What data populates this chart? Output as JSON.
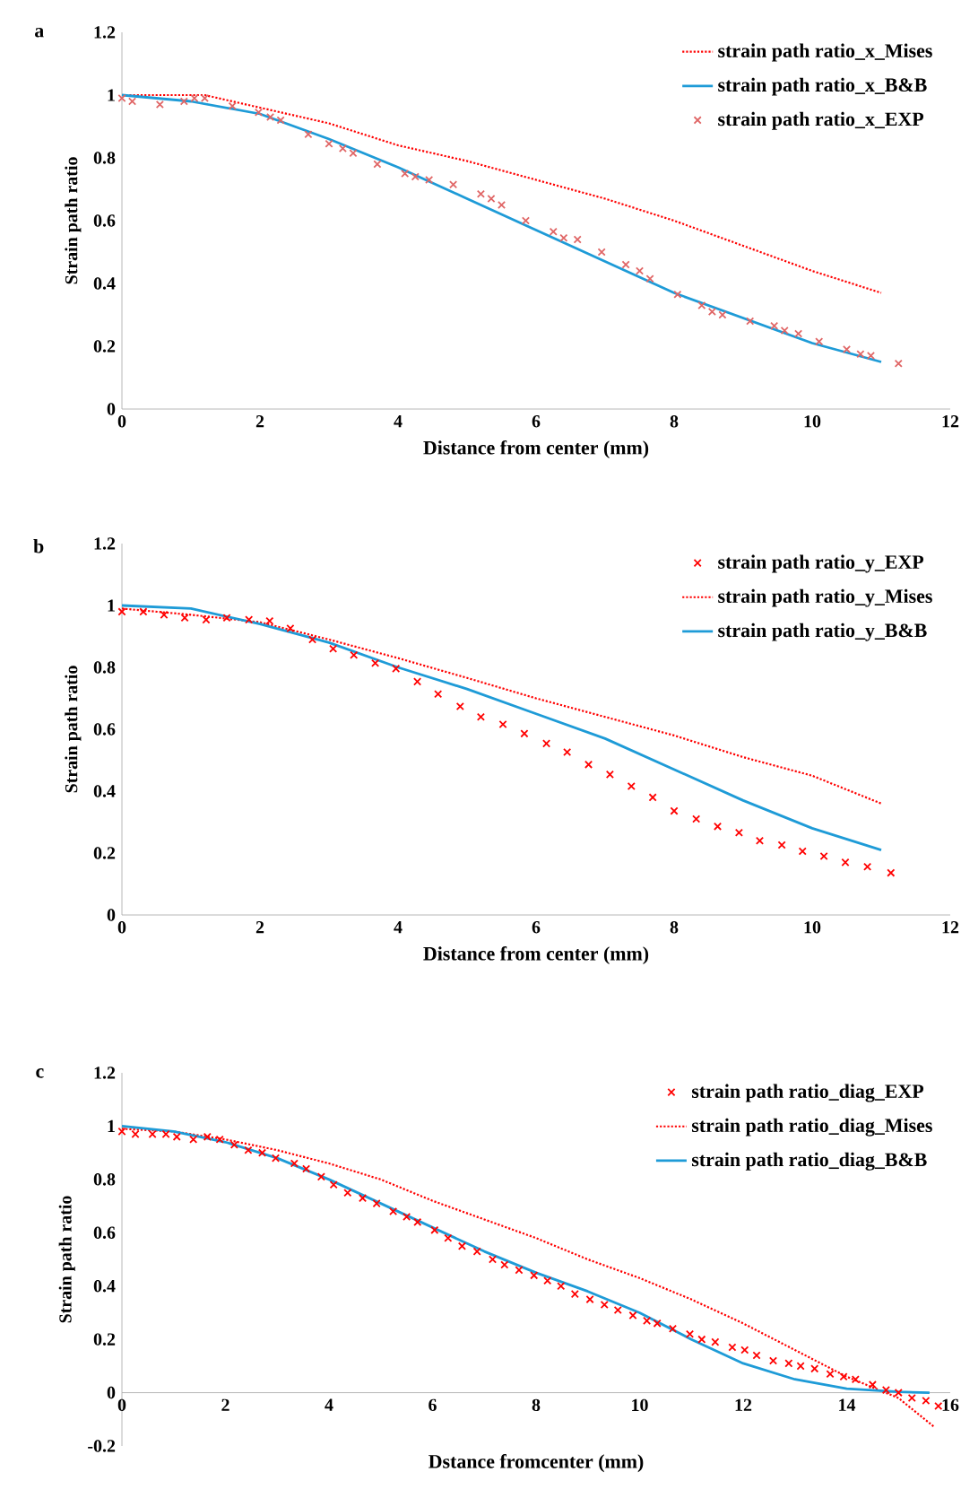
{
  "chart_data": [
    {
      "type": "line",
      "title": "a",
      "xlabel": "Distance from center (mm)",
      "ylabel": "Strain path ratio",
      "xlim": [
        0,
        12
      ],
      "ylim": [
        0,
        1.2
      ],
      "xticks": [
        0,
        2,
        4,
        6,
        8,
        10,
        12
      ],
      "yticks": [
        0,
        0.2,
        0.4,
        0.6,
        0.8,
        1,
        1.2
      ],
      "legend": "top right",
      "series": [
        {
          "name": "strain path ratio_x_Mises",
          "color": "#ff0000",
          "line_style": "dotted",
          "marker": "none",
          "x": [
            0,
            1,
            1.2,
            2,
            3,
            4,
            5,
            6,
            7,
            8,
            9,
            10,
            11
          ],
          "values": [
            1.0,
            1.0,
            1.0,
            0.96,
            0.91,
            0.84,
            0.79,
            0.73,
            0.67,
            0.6,
            0.52,
            0.44,
            0.37
          ]
        },
        {
          "name": "strain path ratio_x_B&B",
          "color": "#1e9bd7",
          "line_style": "solid",
          "marker": "none",
          "x": [
            0,
            1,
            2,
            3,
            4,
            5,
            6,
            7,
            8,
            9,
            10,
            11
          ],
          "values": [
            1.0,
            0.98,
            0.94,
            0.86,
            0.77,
            0.67,
            0.57,
            0.47,
            0.37,
            0.29,
            0.21,
            0.15
          ]
        },
        {
          "name": "strain path ratio_x_EXP",
          "color": "#e06666",
          "type": "scatter",
          "marker": "cross",
          "x": [
            0,
            0.15,
            0.55,
            0.9,
            1.05,
            1.2,
            1.6,
            1.98,
            2.15,
            2.3,
            2.7,
            3.0,
            3.2,
            3.35,
            3.7,
            4.1,
            4.25,
            4.45,
            4.8,
            5.2,
            5.35,
            5.5,
            5.85,
            6.25,
            6.4,
            6.6,
            6.95,
            7.3,
            7.5,
            7.65,
            8.05,
            8.4,
            8.55,
            8.7,
            9.1,
            9.45,
            9.6,
            9.8,
            10.1,
            10.5,
            10.7,
            10.85,
            11.25
          ],
          "values": [
            0.99,
            0.98,
            0.97,
            0.98,
            0.99,
            0.99,
            0.965,
            0.945,
            0.93,
            0.92,
            0.875,
            0.845,
            0.83,
            0.815,
            0.78,
            0.75,
            0.74,
            0.73,
            0.715,
            0.685,
            0.67,
            0.65,
            0.6,
            0.565,
            0.545,
            0.54,
            0.5,
            0.46,
            0.44,
            0.415,
            0.365,
            0.33,
            0.31,
            0.3,
            0.28,
            0.265,
            0.25,
            0.24,
            0.215,
            0.19,
            0.175,
            0.17,
            0.145
          ]
        }
      ]
    },
    {
      "type": "line",
      "title": "b",
      "xlabel": "Distance  from center (mm)",
      "ylabel": "Strain path ratio",
      "xlim": [
        0,
        12
      ],
      "ylim": [
        0,
        1.2
      ],
      "xticks": [
        0,
        2,
        4,
        6,
        8,
        10,
        12
      ],
      "yticks": [
        0,
        0.2,
        0.4,
        0.6,
        0.8,
        1,
        1.2
      ],
      "legend": "top right",
      "series": [
        {
          "name": "strain path ratio_y_EXP",
          "color": "#ff0000",
          "type": "scatter",
          "marker": "cross",
          "x": [
            0,
            0.31,
            0.61,
            0.91,
            1.22,
            1.52,
            1.84,
            2.14,
            2.44,
            2.76,
            3.06,
            3.36,
            3.67,
            3.97,
            4.28,
            4.58,
            4.9,
            5.2,
            5.52,
            5.83,
            6.15,
            6.45,
            6.76,
            7.07,
            7.38,
            7.69,
            8.0,
            8.32,
            8.63,
            8.94,
            9.24,
            9.56,
            9.86,
            10.17,
            10.48,
            10.8,
            11.14
          ],
          "values": [
            0.98,
            0.98,
            0.97,
            0.96,
            0.954,
            0.96,
            0.954,
            0.95,
            0.926,
            0.89,
            0.86,
            0.84,
            0.814,
            0.796,
            0.754,
            0.714,
            0.674,
            0.64,
            0.616,
            0.586,
            0.554,
            0.526,
            0.486,
            0.454,
            0.416,
            0.38,
            0.336,
            0.31,
            0.286,
            0.266,
            0.24,
            0.226,
            0.206,
            0.19,
            0.17,
            0.156,
            0.136
          ]
        },
        {
          "name": "strain path ratio_y_Mises",
          "color": "#ff0000",
          "line_style": "dotted",
          "marker": "none",
          "x": [
            0,
            1,
            2,
            3,
            4,
            5,
            6,
            7,
            8,
            9,
            10,
            11
          ],
          "values": [
            0.99,
            0.97,
            0.946,
            0.89,
            0.83,
            0.766,
            0.7,
            0.64,
            0.58,
            0.51,
            0.45,
            0.36
          ]
        },
        {
          "name": "strain path ratio_y_B&B",
          "color": "#1e9bd7",
          "line_style": "solid",
          "marker": "none",
          "x": [
            0,
            1,
            2,
            3,
            4,
            5,
            6,
            7,
            8,
            9,
            10,
            11
          ],
          "values": [
            1.0,
            0.99,
            0.94,
            0.88,
            0.8,
            0.73,
            0.65,
            0.57,
            0.47,
            0.37,
            0.28,
            0.21
          ]
        }
      ]
    },
    {
      "type": "line",
      "title": "c",
      "xlabel": "Dstance fromcenter (mm)",
      "ylabel": "Strain path ratio",
      "xlim": [
        0,
        16
      ],
      "ylim": [
        -0.2,
        1.2
      ],
      "xticks": [
        0,
        2,
        4,
        6,
        8,
        10,
        12,
        14,
        16
      ],
      "yticks": [
        -0.2,
        0,
        0.2,
        0.4,
        0.6,
        0.8,
        1,
        1.2
      ],
      "legend": "top right",
      "series": [
        {
          "name": "strain path ratio_diag_EXP",
          "color": "#ff0000",
          "type": "scatter",
          "marker": "cross",
          "x": [
            0,
            0.26,
            0.59,
            0.85,
            1.06,
            1.38,
            1.65,
            1.89,
            2.17,
            2.44,
            2.71,
            2.97,
            3.33,
            3.56,
            3.85,
            4.09,
            4.36,
            4.65,
            4.92,
            5.24,
            5.5,
            5.71,
            6.04,
            6.3,
            6.57,
            6.86,
            7.16,
            7.39,
            7.67,
            7.96,
            8.22,
            8.48,
            8.75,
            9.04,
            9.32,
            9.58,
            9.87,
            10.14,
            10.34,
            10.64,
            10.97,
            11.2,
            11.46,
            11.79,
            12.03,
            12.26,
            12.58,
            12.88,
            13.11,
            13.38,
            13.68,
            13.94,
            14.17,
            14.5,
            14.76,
            15.0,
            15.26,
            15.53,
            15.77
          ],
          "values": [
            0.98,
            0.97,
            0.97,
            0.97,
            0.96,
            0.95,
            0.96,
            0.95,
            0.93,
            0.91,
            0.9,
            0.88,
            0.86,
            0.84,
            0.81,
            0.78,
            0.75,
            0.73,
            0.71,
            0.68,
            0.66,
            0.64,
            0.61,
            0.58,
            0.55,
            0.53,
            0.5,
            0.48,
            0.46,
            0.44,
            0.42,
            0.4,
            0.37,
            0.35,
            0.33,
            0.31,
            0.29,
            0.27,
            0.26,
            0.24,
            0.22,
            0.2,
            0.19,
            0.17,
            0.16,
            0.14,
            0.12,
            0.11,
            0.1,
            0.09,
            0.07,
            0.06,
            0.05,
            0.03,
            0.01,
            0.0,
            -0.02,
            -0.03,
            -0.05
          ]
        },
        {
          "name": "strain path ratio_diag_Mises",
          "color": "#ff0000",
          "line_style": "dotted",
          "marker": "none",
          "x": [
            0,
            1,
            2,
            3,
            4,
            5,
            6,
            7,
            8,
            9,
            10,
            11,
            12,
            13,
            14,
            15,
            15.7
          ],
          "values": [
            0.99,
            0.98,
            0.95,
            0.91,
            0.86,
            0.8,
            0.72,
            0.65,
            0.58,
            0.5,
            0.43,
            0.35,
            0.26,
            0.16,
            0.06,
            -0.02,
            -0.13
          ]
        },
        {
          "name": "strain path ratio_diag_B&B",
          "color": "#1e9bd7",
          "line_style": "solid",
          "marker": "none",
          "x": [
            0,
            1,
            2,
            3,
            4,
            5,
            6,
            7,
            8,
            9,
            10,
            11,
            12,
            13,
            14,
            15,
            15.6
          ],
          "values": [
            1.0,
            0.98,
            0.94,
            0.88,
            0.8,
            0.71,
            0.62,
            0.53,
            0.45,
            0.38,
            0.3,
            0.2,
            0.11,
            0.05,
            0.015,
            0.003,
            0.0
          ]
        }
      ]
    }
  ]
}
